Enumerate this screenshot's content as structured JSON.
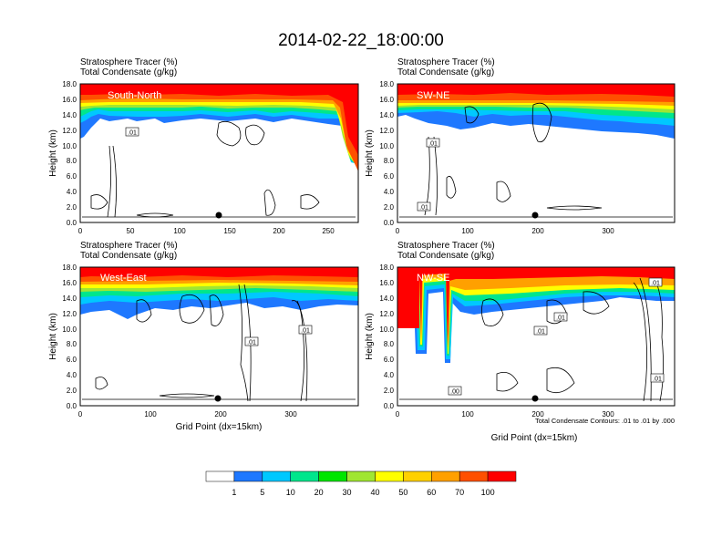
{
  "figure": {
    "title": "2014-02-22_18:00:00",
    "contour_note": "Total Condensate Contours: .01 to .01 by .000"
  },
  "panels": [
    {
      "id": "south-north",
      "label": "South-North",
      "line1": "Stratosphere Tracer   (%)",
      "line2": "Total Condensate   (g/kg)",
      "ylabel": "Height (km)",
      "xlabel": "",
      "yticks": [
        "0.0",
        "2.0",
        "4.0",
        "6.0",
        "8.0",
        "10.0",
        "12.0",
        "14.0",
        "16.0",
        "18.0"
      ],
      "xticks": [
        "0",
        "50",
        "100",
        "150",
        "200",
        "250"
      ],
      "contour_labels": [
        ".01"
      ]
    },
    {
      "id": "sw-ne",
      "label": "SW-NE",
      "line1": "Stratosphere Tracer   (%)",
      "line2": "Total Condensate   (g/kg)",
      "ylabel": "Height (km)",
      "xlabel": "",
      "yticks": [
        "0.0",
        "2.0",
        "4.0",
        "6.0",
        "8.0",
        "10.0",
        "12.0",
        "14.0",
        "16.0",
        "18.0"
      ],
      "xticks": [
        "0",
        "100",
        "200",
        "300"
      ],
      "contour_labels": [
        ".01",
        ".01"
      ]
    },
    {
      "id": "west-east",
      "label": "West-East",
      "line1": "Stratosphere Tracer   (%)",
      "line2": "Total Condensate   (g/kg)",
      "ylabel": "Height (km)",
      "xlabel": "Grid Point (dx=15km)",
      "yticks": [
        "0.0",
        "2.0",
        "4.0",
        "6.0",
        "8.0",
        "10.0",
        "12.0",
        "14.0",
        "16.0",
        "18.0"
      ],
      "xticks": [
        "0",
        "100",
        "200",
        "300"
      ],
      "contour_labels": [
        ".01",
        ".01"
      ]
    },
    {
      "id": "nw-se",
      "label": "NW-SE",
      "line1": "Stratosphere Tracer   (%)",
      "line2": "Total Condensate   (g/kg)",
      "ylabel": "Height (km)",
      "xlabel": "Grid Point (dx=15km)",
      "yticks": [
        "0.0",
        "2.0",
        "4.0",
        "6.0",
        "8.0",
        "10.0",
        "12.0",
        "14.0",
        "16.0",
        "18.0"
      ],
      "xticks": [
        "0",
        "100",
        "200",
        "300"
      ],
      "contour_labels": [
        ".01",
        ".01",
        ".01",
        ".00",
        ".01"
      ]
    }
  ],
  "colorbar": {
    "labels": [
      "1",
      "5",
      "10",
      "20",
      "30",
      "40",
      "50",
      "60",
      "70",
      "100"
    ],
    "colors": [
      "#ffffff",
      "#1e78ff",
      "#00c8ff",
      "#00e68c",
      "#00e600",
      "#a0e632",
      "#ffff00",
      "#ffd000",
      "#ffa000",
      "#ff5000",
      "#ff0000"
    ]
  },
  "chart_data": [
    {
      "type": "heatmap",
      "title": "South-North",
      "ylabel": "Height (km)",
      "ylim": [
        0,
        18
      ],
      "xlim": [
        0,
        280
      ],
      "xticks": [
        0,
        50,
        100,
        150,
        200,
        250
      ],
      "series": [
        {
          "name": "Stratosphere Tracer (%)",
          "values": "contour-filled field: 100% above ~16 km, decreasing to 1% near 12-14 km; tracer descends to ~7 km at x~275"
        },
        {
          "name": "Total Condensate (g/kg)",
          "values": "contour line at 0.01 g/kg"
        }
      ]
    },
    {
      "type": "heatmap",
      "title": "SW-NE",
      "ylabel": "Height (km)",
      "ylim": [
        0,
        18
      ],
      "xlim": [
        0,
        395
      ],
      "xticks": [
        0,
        100,
        200,
        300
      ],
      "series": [
        {
          "name": "Stratosphere Tracer (%)",
          "values": "100% above ~15.5 km, 1% near 11-13 km"
        },
        {
          "name": "Total Condensate (g/kg)",
          "values": "contour line at 0.01 g/kg"
        }
      ]
    },
    {
      "type": "heatmap",
      "title": "West-East",
      "xlabel": "Grid Point (dx=15km)",
      "ylabel": "Height (km)",
      "ylim": [
        0,
        18
      ],
      "xlim": [
        0,
        395
      ],
      "xticks": [
        0,
        100,
        200,
        300
      ],
      "series": [
        {
          "name": "Stratosphere Tracer (%)",
          "values": "100% above ~16 km, 1% near 11-14 km"
        },
        {
          "name": "Total Condensate (g/kg)",
          "values": "contour line at 0.01 g/kg"
        }
      ]
    },
    {
      "type": "heatmap",
      "title": "NW-SE",
      "xlabel": "Grid Point (dx=15km)",
      "ylabel": "Height (km)",
      "ylim": [
        0,
        18
      ],
      "xlim": [
        0,
        395
      ],
      "xticks": [
        0,
        100,
        200,
        300
      ],
      "series": [
        {
          "name": "Stratosphere Tracer (%)",
          "values": "100% above ~16 km; tropopause folds near x~30 and x~75 descending to ~6 km"
        },
        {
          "name": "Total Condensate (g/kg)",
          "values": "contour line at 0.01 g/kg"
        }
      ]
    }
  ]
}
